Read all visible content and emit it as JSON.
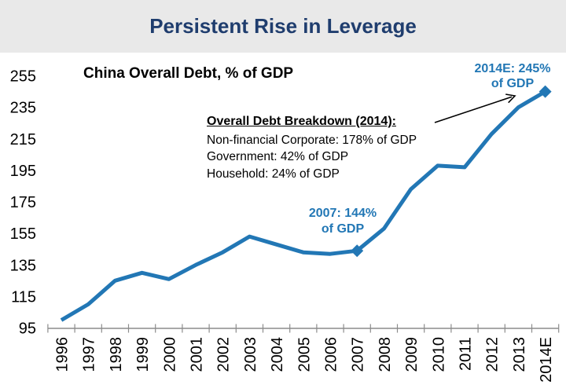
{
  "header": {
    "title": "Persistent Rise in Leverage",
    "title_color": "#1f3d6e",
    "banner_bg": "#e9e9e9"
  },
  "chart_data": {
    "type": "line",
    "title": "China Overall Debt, % of GDP",
    "xlabel": "",
    "ylabel": "",
    "categories": [
      "1996",
      "1997",
      "1998",
      "1999",
      "2000",
      "2001",
      "2002",
      "2003",
      "2004",
      "2005",
      "2006",
      "2007",
      "2008",
      "2009",
      "2010",
      "2011",
      "2012",
      "2013",
      "2014E"
    ],
    "values": [
      100,
      110,
      125,
      130,
      126,
      135,
      143,
      153,
      148,
      143,
      142,
      144,
      158,
      183,
      198,
      197,
      218,
      235,
      245
    ],
    "ylim": [
      95,
      255
    ],
    "yticks": [
      255,
      235,
      215,
      195,
      175,
      155,
      135,
      115,
      95
    ],
    "grid": false,
    "legend": false,
    "line_color": "#2277b5",
    "marker": "diamond",
    "marker_years": [
      "2007",
      "2014E"
    ],
    "axis_color": "#8c8c8c",
    "text_color": "#000000",
    "annotations": {
      "point_2007": {
        "line1": "2007: 144%",
        "line2": "of GDP"
      },
      "point_2014": {
        "line1": "2014E: 245%",
        "line2": "of GDP"
      },
      "breakdown": {
        "heading": "Overall Debt Breakdown (2014):",
        "lines": [
          "Non-financial Corporate: 178% of GDP",
          "Government: 42% of GDP",
          "Household: 24% of GDP"
        ]
      }
    }
  }
}
